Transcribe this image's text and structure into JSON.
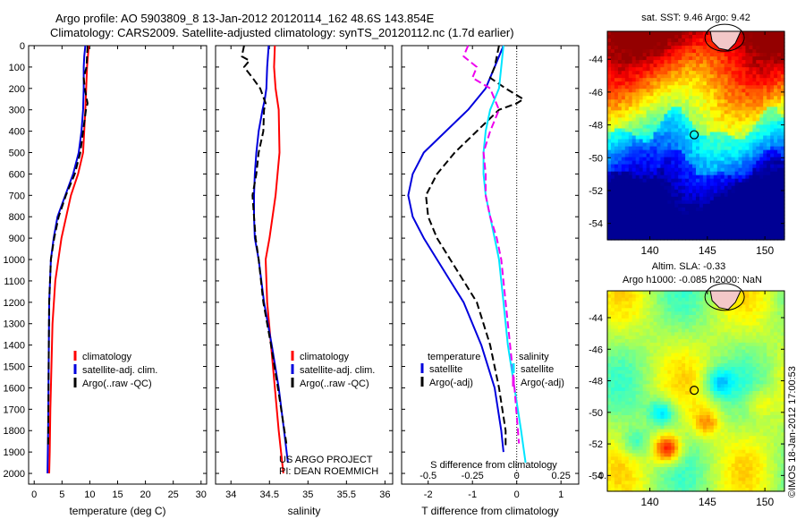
{
  "header": {
    "line1": "Argo profile: AO 5903809_8 13-Jan-2012 20120114_162 48.6S 143.854E",
    "line2": "Climatology: CARS2009. Satellite-adjusted climatology: synTS_20120112.nc (1.7d earlier)"
  },
  "colors": {
    "climatology": "#ff0000",
    "satellite": "#0000dd",
    "argo": "#000000",
    "sal_satellite": "#00e5ff",
    "sal_argo": "#ee00ee"
  },
  "depth_ticks": [
    0,
    100,
    200,
    300,
    400,
    500,
    600,
    700,
    800,
    900,
    1000,
    1100,
    1200,
    1300,
    1400,
    1500,
    1600,
    1700,
    1800,
    1900,
    2000
  ],
  "chart_data": [
    {
      "type": "line",
      "xlabel": "temperature (deg C)",
      "xlim": [
        -1,
        31
      ],
      "ylim": [
        2050,
        0
      ],
      "xticks": [
        "0",
        "5",
        "10",
        "15",
        "20",
        "25",
        "30"
      ],
      "xtick_values": [
        0,
        5,
        10,
        15,
        20,
        25,
        30
      ],
      "legend": [
        "climatology",
        "satellite-adj. clim.",
        "Argo(..raw -QC)"
      ],
      "series": [
        {
          "name": "climatology",
          "color_key": "climatology",
          "dashed": false,
          "y": [
            0,
            100,
            300,
            500,
            600,
            700,
            900,
            1100,
            1300,
            1500,
            1700,
            1900,
            2000
          ],
          "x": [
            9.8,
            9.5,
            9.2,
            8.8,
            7.9,
            6.6,
            4.9,
            3.8,
            3.3,
            3.1,
            2.9,
            2.8,
            2.7
          ]
        },
        {
          "name": "satellite-adj. clim.",
          "color_key": "satellite",
          "dashed": false,
          "y": [
            0,
            50,
            100,
            200,
            300,
            400,
            500,
            600,
            700,
            800,
            900,
            1000,
            1200,
            1500,
            1800,
            2000
          ],
          "x": [
            9.2,
            9.0,
            8.9,
            8.9,
            8.8,
            8.5,
            8.0,
            7.0,
            5.6,
            4.2,
            3.5,
            3.0,
            2.7,
            2.6,
            2.5,
            2.4
          ]
        },
        {
          "name": "Argo(..raw -QC)",
          "color_key": "argo",
          "dashed": true,
          "y": [
            0,
            100,
            150,
            200,
            270,
            300,
            400,
            500,
            600,
            700,
            800,
            900,
            1000,
            1200,
            1500,
            1880
          ],
          "x": [
            9.6,
            9.4,
            8.9,
            9.1,
            9.6,
            9.3,
            8.8,
            8.3,
            7.3,
            5.7,
            4.4,
            3.6,
            3.0,
            2.7,
            2.6,
            2.5
          ]
        }
      ]
    },
    {
      "type": "line",
      "xlabel": "salinity",
      "xlim": [
        33.8,
        36.1
      ],
      "ylim": [
        2050,
        0
      ],
      "xticks": [
        "34",
        "34.5",
        "35",
        "35.5",
        "36"
      ],
      "xtick_values": [
        34,
        34.5,
        35,
        35.5,
        36
      ],
      "legend": [
        "climatology",
        "satellite-adj. clim.",
        "Argo(..raw -QC)"
      ],
      "series": [
        {
          "name": "climatology",
          "color_key": "climatology",
          "dashed": false,
          "y": [
            0,
            100,
            200,
            300,
            500,
            700,
            900,
            1000,
            1200,
            1400,
            1600,
            1800,
            2000
          ],
          "x": [
            34.57,
            34.56,
            34.58,
            34.62,
            34.63,
            34.58,
            34.5,
            34.45,
            34.47,
            34.52,
            34.57,
            34.62,
            34.68
          ]
        },
        {
          "name": "satellite-adj. clim.",
          "color_key": "satellite",
          "dashed": false,
          "y": [
            0,
            100,
            200,
            250,
            300,
            400,
            500,
            600,
            700,
            800,
            900,
            1000,
            1200,
            1400,
            1600,
            1800,
            1950
          ],
          "x": [
            34.49,
            34.47,
            34.46,
            34.44,
            34.41,
            34.36,
            34.33,
            34.31,
            34.3,
            34.3,
            34.31,
            34.36,
            34.43,
            34.53,
            34.62,
            34.69,
            34.74
          ]
        },
        {
          "name": "Argo(..raw -QC)",
          "color_key": "argo",
          "dashed": true,
          "y": [
            0,
            50,
            70,
            100,
            150,
            200,
            270,
            300,
            400,
            500,
            600,
            700,
            800,
            900,
            1000,
            1200,
            1400,
            1600,
            1860
          ],
          "x": [
            34.17,
            34.14,
            34.24,
            34.17,
            34.28,
            34.38,
            34.45,
            34.43,
            34.42,
            34.36,
            34.33,
            34.28,
            34.3,
            34.32,
            34.36,
            34.42,
            34.52,
            34.61,
            34.72
          ]
        }
      ]
    },
    {
      "type": "line",
      "xlabel": "T difference from climatology",
      "top_label": "S difference from climatology",
      "xlim": [
        -2.6,
        1.4
      ],
      "ylim": [
        2050,
        0
      ],
      "xticks": [
        "-2",
        "-1",
        "0",
        "1"
      ],
      "xtick_values": [
        -2,
        -1,
        0,
        1
      ],
      "top_ticks": [
        "-0.5",
        "-0.25",
        "0",
        "0.25",
        "0.5"
      ],
      "top_tick_positions_T": [
        -2,
        -1,
        0,
        1,
        2
      ],
      "legend_temperature": {
        "title": "temperature",
        "items": [
          "satellite",
          "Argo(-adj)"
        ]
      },
      "legend_salinity": {
        "title": "salinity",
        "items": [
          "satellite",
          "Argo(-adj)"
        ]
      },
      "series": [
        {
          "name": "satellite",
          "group": "temperature",
          "color_key": "satellite",
          "dashed": false,
          "y": [
            0,
            100,
            200,
            300,
            400,
            500,
            600,
            700,
            800,
            900,
            1000,
            1100,
            1200,
            1400,
            1600,
            1800,
            1900
          ],
          "x": [
            -0.3,
            -0.5,
            -0.7,
            -1.1,
            -1.6,
            -2.1,
            -2.35,
            -2.45,
            -2.35,
            -2.1,
            -1.8,
            -1.5,
            -1.2,
            -0.8,
            -0.5,
            -0.35,
            -0.3
          ]
        },
        {
          "name": "Argo(-adj)",
          "group": "temperature",
          "color_key": "argo",
          "dashed": true,
          "y": [
            0,
            100,
            150,
            200,
            250,
            270,
            300,
            400,
            500,
            600,
            700,
            800,
            900,
            1000,
            1100,
            1200,
            1400,
            1600,
            1800,
            1880
          ],
          "x": [
            -0.4,
            -0.5,
            -0.6,
            -0.25,
            0.15,
            0.0,
            -0.4,
            -0.9,
            -1.4,
            -1.8,
            -2.05,
            -2.0,
            -1.8,
            -1.5,
            -1.2,
            -0.9,
            -0.6,
            -0.4,
            -0.25,
            -0.25
          ]
        },
        {
          "name": "satellite",
          "group": "salinity",
          "color_key": "sal_satellite",
          "dashed": false,
          "y": [
            0,
            100,
            200,
            300,
            400,
            500,
            600,
            700,
            800,
            900,
            1000,
            1200,
            1400,
            1600,
            1800,
            1950
          ],
          "x": [
            -0.3,
            -0.35,
            -0.4,
            -0.6,
            -0.7,
            -0.75,
            -0.75,
            -0.7,
            -0.6,
            -0.5,
            -0.4,
            -0.3,
            -0.2,
            -0.05,
            0.1,
            0.2
          ]
        },
        {
          "name": "Argo(-adj)",
          "group": "salinity",
          "color_key": "sal_argo",
          "dashed": true,
          "y": [
            0,
            50,
            100,
            150,
            200,
            300,
            400,
            500,
            600,
            700,
            800,
            900,
            1000,
            1200,
            1400,
            1600,
            1860
          ],
          "x": [
            -1.1,
            -1.2,
            -0.9,
            -1.0,
            -0.6,
            -0.4,
            -0.6,
            -0.75,
            -0.7,
            -0.7,
            -0.6,
            -0.45,
            -0.35,
            -0.25,
            -0.15,
            -0.05,
            0.05
          ]
        }
      ]
    },
    {
      "type": "heatmap",
      "title": "sat. SST: 9.46 Argo: 9.42",
      "xticks": [
        "140",
        "145",
        "150"
      ],
      "xtick_values": [
        140,
        145,
        150
      ],
      "yticks": [
        "-44",
        "-46",
        "-48",
        "-50",
        "-52",
        "-54"
      ],
      "ytick_values": [
        -44,
        -46,
        -48,
        -50,
        -52,
        -54
      ],
      "xlim": [
        136.3,
        151.7
      ],
      "ylim": [
        -55,
        -42.3
      ],
      "argo_position": [
        143.854,
        -48.6
      ]
    },
    {
      "type": "heatmap",
      "title_line1": "Altim. SLA: -0.33",
      "title_line2": "Argo h1000: -0.085 h2000: NaN",
      "xticks": [
        "140",
        "145",
        "150"
      ],
      "xtick_values": [
        140,
        145,
        150
      ],
      "yticks": [
        "-44",
        "-46",
        "-48",
        "-50",
        "-52",
        "-54"
      ],
      "ytick_values": [
        -44,
        -46,
        -48,
        -50,
        -52,
        -54
      ],
      "xlim": [
        136.3,
        151.7
      ],
      "ylim": [
        -55,
        -42.3
      ],
      "argo_position": [
        143.854,
        -48.6
      ]
    }
  ],
  "footer": {
    "project_line1": "US ARGO PROJECT",
    "project_line2": "PI: DEAN ROEMMICH",
    "credit": "©IMOS 18-Jan-2012 17:00:53"
  }
}
